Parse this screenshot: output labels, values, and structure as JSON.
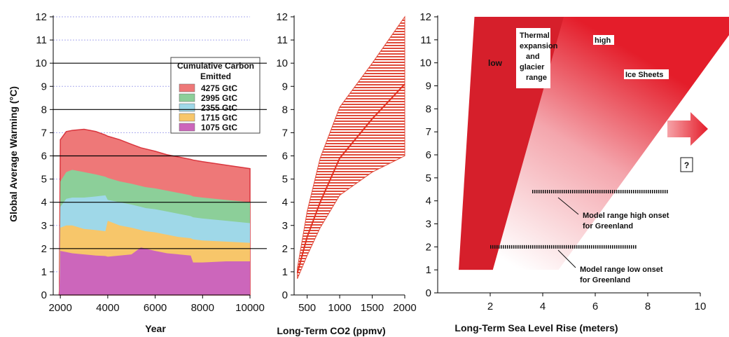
{
  "chart_data": [
    {
      "type": "area",
      "x": [
        2000,
        2250,
        2500,
        3000,
        3500,
        3900,
        4000,
        4500,
        5000,
        5400,
        5600,
        6000,
        6500,
        7000,
        7500,
        7600,
        8000,
        9000,
        10000
      ],
      "series": [
        {
          "name": "1075 GtC",
          "color": "#cc66bb",
          "values": [
            1.9,
            1.85,
            1.8,
            1.75,
            1.7,
            1.68,
            1.65,
            1.7,
            1.75,
            2.05,
            2.0,
            1.9,
            1.8,
            1.75,
            1.7,
            1.4,
            1.4,
            1.45,
            1.45
          ]
        },
        {
          "name": "1715 GtC",
          "color": "#f7c66a",
          "values": [
            2.9,
            3.0,
            3.0,
            2.85,
            2.8,
            2.75,
            3.2,
            3.0,
            2.9,
            2.8,
            2.75,
            2.7,
            2.6,
            2.5,
            2.45,
            2.4,
            2.35,
            2.3,
            2.25
          ]
        },
        {
          "name": "2355 GtC",
          "color": "#9fd8e8",
          "values": [
            3.8,
            4.15,
            4.2,
            4.2,
            4.25,
            4.3,
            4.1,
            4.0,
            3.9,
            3.8,
            3.75,
            3.7,
            3.6,
            3.5,
            3.4,
            3.35,
            3.3,
            3.2,
            3.1
          ]
        },
        {
          "name": "2995 GtC",
          "color": "#8ccf99",
          "values": [
            4.9,
            5.3,
            5.4,
            5.3,
            5.2,
            5.1,
            5.05,
            4.9,
            4.8,
            4.7,
            4.65,
            4.6,
            4.5,
            4.4,
            4.3,
            4.25,
            4.2,
            4.1,
            4.0
          ]
        },
        {
          "name": "4275 GtC",
          "color": "#ee7878",
          "values": [
            6.7,
            7.05,
            7.1,
            7.15,
            7.05,
            6.9,
            6.85,
            6.7,
            6.5,
            6.35,
            6.3,
            6.2,
            6.05,
            5.95,
            5.85,
            5.82,
            5.75,
            5.6,
            5.45
          ]
        }
      ],
      "xlabel": "Year",
      "ylabel": "Global Average Warming (°C)",
      "xlim": [
        1700,
        10000
      ],
      "ylim": [
        0,
        12
      ],
      "xticks": [
        "2000",
        "4000",
        "6000",
        "8000",
        "10000"
      ],
      "yticks": [
        "0",
        "1",
        "2",
        "3",
        "4",
        "5",
        "6",
        "7",
        "8",
        "9",
        "10",
        "11",
        "12"
      ],
      "legend_title": "Cumulative Carbon Emitted",
      "legend_placement": "top-right",
      "reference_lines_solid": [
        2,
        4,
        6,
        8,
        10
      ],
      "reference_lines_dashed": [
        1,
        3,
        5,
        7,
        9,
        11,
        12
      ]
    },
    {
      "type": "area",
      "x": [
        350,
        500,
        700,
        1000,
        1500,
        2000
      ],
      "series": [
        {
          "name": "",
          "values": [
            0.95,
            2.5,
            4.0,
            5.9,
            7.6,
            9.1
          ]
        },
        {
          "name": "",
          "values": [
            0.7,
            1.7,
            2.9,
            4.3,
            5.3,
            6.0
          ]
        },
        {
          "name": "",
          "values": [
            1.15,
            3.6,
            5.9,
            8.1,
            10.0,
            12.0
          ]
        }
      ],
      "xlabel": "Long-Term CO2 (ppmv)",
      "xlim": [
        300,
        2000
      ],
      "ylim": [
        0,
        12
      ],
      "xticks": [
        "500",
        "1000",
        "1500",
        "2000"
      ],
      "yticks": [
        "0",
        "1",
        "2",
        "3",
        "4",
        "5",
        "6",
        "7",
        "8",
        "9",
        "10",
        "11",
        "12"
      ]
    },
    {
      "type": "area",
      "xlabel": "Long-Term Sea Level Rise (meters)",
      "xlim": [
        0,
        10
      ],
      "ylim": [
        0,
        12
      ],
      "xticks": [
        "2",
        "4",
        "6",
        "8",
        "10"
      ],
      "yticks": [
        "0",
        "1",
        "2",
        "3",
        "4",
        "5",
        "6",
        "7",
        "8",
        "9",
        "10",
        "11",
        "12"
      ],
      "thermal_band": {
        "x_low": [
          0.8,
          1.4
        ],
        "x_high": [
          2.1,
          4.8
        ],
        "y": [
          1,
          12
        ]
      },
      "ice_band": {
        "x_low": [
          1.3,
          3.7
        ],
        "x_high": [
          4.6,
          11.6
        ],
        "y": [
          1,
          12
        ]
      },
      "greenland_ranges": [
        {
          "y": 4.4,
          "x": [
            3.6,
            8.8
          ]
        },
        {
          "y": 2.0,
          "x": [
            2.0,
            7.6
          ]
        }
      ],
      "labels": {
        "low": "low",
        "high": "high",
        "thermal": "Thermal expansion and glacier range",
        "ice": "Ice Sheets",
        "question": "?",
        "greenland_high": "Model range high onset for Greenland",
        "greenland_low": "Model range low onset for Greenland"
      }
    }
  ]
}
